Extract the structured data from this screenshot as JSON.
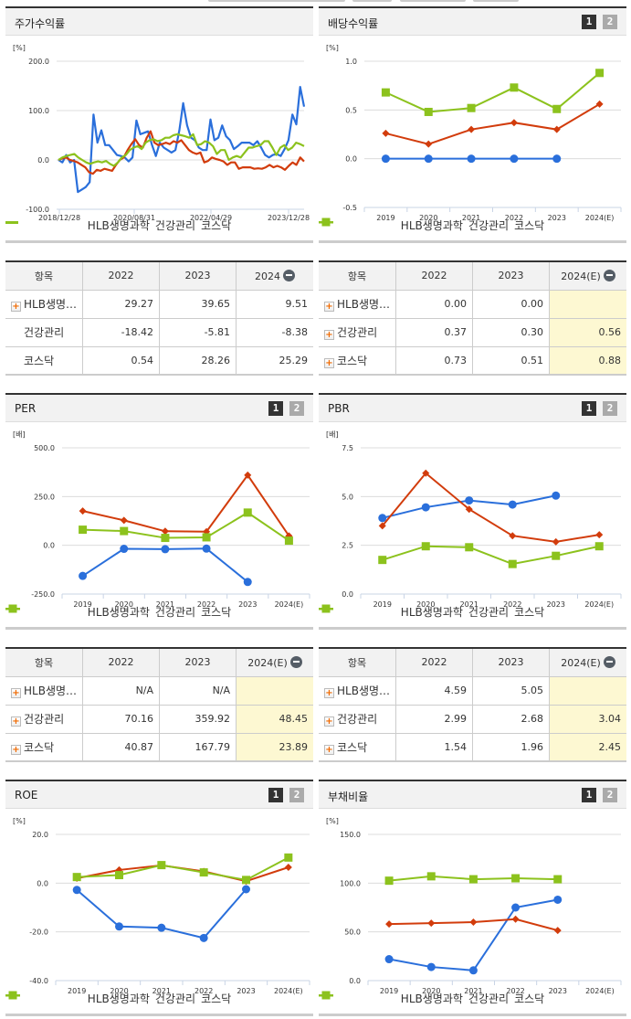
{
  "legend": {
    "series": [
      {
        "name": "HLB생명과학",
        "color": "#2a6fdb"
      },
      {
        "name": "건강관리",
        "color": "#d23c0c"
      },
      {
        "name": "코스닥",
        "color": "#8cc21d"
      }
    ]
  },
  "pager": {
    "page1": "1",
    "page2": "2"
  },
  "panels": {
    "stock_return": {
      "title": "주가수익률",
      "unit": "[%]",
      "y_ticks": [
        "200.0",
        "100.0",
        "0.0",
        "-100.0"
      ],
      "x_ticks": [
        "2018/12/28",
        "2020/08/31",
        "2022/04/29",
        "2023/12/28"
      ],
      "table": {
        "headers": [
          "항목",
          "2022",
          "2023",
          "2024"
        ],
        "rows": [
          {
            "name": "HLB생명…",
            "v": [
              "29.27",
              "39.65",
              "9.51"
            ],
            "expandable": true
          },
          {
            "name": "건강관리",
            "v": [
              "-18.42",
              "-5.81",
              "-8.38"
            ],
            "expandable": false
          },
          {
            "name": "코스닥",
            "v": [
              "0.54",
              "28.26",
              "25.29"
            ],
            "expandable": false
          }
        ]
      }
    },
    "dividend": {
      "title": "배당수익률",
      "unit": "[%]",
      "y_ticks": [
        "1.0",
        "0.5",
        "0.0",
        "-0.5"
      ],
      "x_ticks": [
        "2019",
        "2020",
        "2021",
        "2022",
        "2023",
        "2024(E)"
      ],
      "table": {
        "headers": [
          "항목",
          "2022",
          "2023",
          "2024(E)"
        ],
        "rows": [
          {
            "name": "HLB생명…",
            "v": [
              "0.00",
              "0.00",
              ""
            ]
          },
          {
            "name": "건강관리",
            "v": [
              "0.37",
              "0.30",
              "0.56"
            ]
          },
          {
            "name": "코스닥",
            "v": [
              "0.73",
              "0.51",
              "0.88"
            ]
          }
        ]
      }
    },
    "per": {
      "title": "PER",
      "unit": "[배]",
      "y_ticks": [
        "500.0",
        "250.0",
        "0.0",
        "-250.0"
      ],
      "x_ticks": [
        "2019",
        "2020",
        "2021",
        "2022",
        "2023",
        "2024(E)"
      ],
      "table": {
        "headers": [
          "항목",
          "2022",
          "2023",
          "2024(E)"
        ],
        "rows": [
          {
            "name": "HLB생명…",
            "v": [
              "N/A",
              "N/A",
              ""
            ]
          },
          {
            "name": "건강관리",
            "v": [
              "70.16",
              "359.92",
              "48.45"
            ]
          },
          {
            "name": "코스닥",
            "v": [
              "40.87",
              "167.79",
              "23.89"
            ]
          }
        ]
      }
    },
    "pbr": {
      "title": "PBR",
      "unit": "[배]",
      "y_ticks": [
        "7.5",
        "5.0",
        "2.5",
        "0.0"
      ],
      "x_ticks": [
        "2019",
        "2020",
        "2021",
        "2022",
        "2023",
        "2024(E)"
      ],
      "table": {
        "headers": [
          "항목",
          "2022",
          "2023",
          "2024(E)"
        ],
        "rows": [
          {
            "name": "HLB생명…",
            "v": [
              "4.59",
              "5.05",
              ""
            ]
          },
          {
            "name": "건강관리",
            "v": [
              "2.99",
              "2.68",
              "3.04"
            ]
          },
          {
            "name": "코스닥",
            "v": [
              "1.54",
              "1.96",
              "2.45"
            ]
          }
        ]
      }
    },
    "roe": {
      "title": "ROE",
      "unit": "[%]",
      "y_ticks": [
        "20.0",
        "0.0",
        "-20.0",
        "-40.0"
      ],
      "x_ticks": [
        "2019",
        "2020",
        "2021",
        "2022",
        "2023",
        "2024(E)"
      ]
    },
    "debt": {
      "title": "부채비율",
      "unit": "[%]",
      "y_ticks": [
        "150.0",
        "100.0",
        "50.0",
        "0.0"
      ],
      "x_ticks": [
        "2019",
        "2020",
        "2021",
        "2022",
        "2023",
        "2024(E)"
      ]
    }
  },
  "chart_data": [
    {
      "type": "line",
      "title": "주가수익률",
      "ylabel": "[%]",
      "ylim": [
        -100,
        200
      ],
      "x": [
        "2018/12/28",
        "2020/08/31",
        "2022/04/29",
        "2023/12/28"
      ],
      "series": [
        {
          "name": "HLB생명과학",
          "values": [
            0,
            -5,
            10,
            -5,
            0,
            -65,
            -60,
            -55,
            -45,
            92,
            35,
            60,
            30,
            30,
            20,
            10,
            8,
            5,
            -3,
            5,
            80,
            52,
            55,
            58,
            30,
            8,
            35,
            25,
            20,
            15,
            20,
            60,
            115,
            70,
            45,
            40,
            25,
            20,
            20,
            82,
            40,
            45,
            70,
            48,
            40,
            22,
            28,
            35,
            35,
            35,
            30,
            38,
            25,
            10,
            5,
            10,
            12,
            8,
            22,
            40,
            92,
            72,
            148,
            108
          ]
        },
        {
          "name": "건강관리",
          "values": [
            0,
            3,
            5,
            0,
            -2,
            -5,
            -10,
            -15,
            -25,
            -28,
            -20,
            -22,
            -18,
            -20,
            -22,
            -10,
            0,
            5,
            20,
            32,
            42,
            30,
            25,
            45,
            58,
            35,
            30,
            32,
            35,
            32,
            38,
            35,
            40,
            30,
            20,
            15,
            12,
            15,
            -5,
            -2,
            5,
            2,
            0,
            -3,
            -10,
            -5,
            -5,
            -18,
            -15,
            -15,
            -15,
            -18,
            -17,
            -18,
            -15,
            -10,
            -15,
            -12,
            -15,
            -20,
            -12,
            -5,
            -10,
            5,
            -3
          ]
        },
        {
          "name": "코스닥",
          "values": [
            0,
            5,
            8,
            10,
            12,
            5,
            0,
            -5,
            -8,
            -5,
            -3,
            -5,
            -2,
            -8,
            -12,
            -5,
            5,
            10,
            20,
            25,
            28,
            22,
            35,
            40,
            42,
            38,
            40,
            45,
            45,
            50,
            52,
            50,
            48,
            45,
            52,
            30,
            32,
            38,
            35,
            28,
            12,
            20,
            20,
            0,
            5,
            8,
            5,
            15,
            25,
            25,
            28,
            30,
            38,
            38,
            25,
            10,
            25,
            30,
            20,
            25,
            35,
            32,
            28
          ]
        }
      ]
    },
    {
      "type": "line",
      "title": "배당수익률",
      "ylabel": "[%]",
      "ylim": [
        -0.5,
        1.0
      ],
      "categories": [
        "2019",
        "2020",
        "2021",
        "2022",
        "2023",
        "2024(E)"
      ],
      "series": [
        {
          "name": "HLB생명과학",
          "values": [
            0.0,
            0.0,
            0.0,
            0.0,
            0.0,
            null
          ]
        },
        {
          "name": "건강관리",
          "values": [
            0.26,
            0.15,
            0.3,
            0.37,
            0.3,
            0.56
          ]
        },
        {
          "name": "코스닥",
          "values": [
            0.68,
            0.48,
            0.52,
            0.73,
            0.51,
            0.88
          ]
        }
      ]
    },
    {
      "type": "line",
      "title": "PER",
      "ylabel": "[배]",
      "ylim": [
        -250,
        500
      ],
      "categories": [
        "2019",
        "2020",
        "2021",
        "2022",
        "2023",
        "2024(E)"
      ],
      "series": [
        {
          "name": "HLB생명과학",
          "values": [
            -157,
            -18,
            -20,
            -17,
            -188,
            null
          ]
        },
        {
          "name": "건강관리",
          "values": [
            176,
            128,
            72,
            70.16,
            359.92,
            48.45
          ]
        },
        {
          "name": "코스닥",
          "values": [
            80,
            73,
            38,
            40.87,
            167.79,
            23.89
          ]
        }
      ]
    },
    {
      "type": "line",
      "title": "PBR",
      "ylabel": "[배]",
      "ylim": [
        0,
        7.5
      ],
      "categories": [
        "2019",
        "2020",
        "2021",
        "2022",
        "2023",
        "2024(E)"
      ],
      "series": [
        {
          "name": "HLB생명과학",
          "values": [
            3.9,
            4.45,
            4.8,
            4.59,
            5.05,
            null
          ]
        },
        {
          "name": "건강관리",
          "values": [
            3.5,
            6.2,
            4.35,
            2.99,
            2.68,
            3.04
          ]
        },
        {
          "name": "코스닥",
          "values": [
            1.75,
            2.45,
            2.4,
            1.54,
            1.96,
            2.45
          ]
        }
      ]
    },
    {
      "type": "line",
      "title": "ROE",
      "ylabel": "[%]",
      "ylim": [
        -40,
        20
      ],
      "categories": [
        "2019",
        "2020",
        "2021",
        "2022",
        "2023",
        "2024(E)"
      ],
      "series": [
        {
          "name": "HLB생명과학",
          "values": [
            -2.8,
            -17.8,
            -18.3,
            -22.5,
            -2.5,
            null
          ]
        },
        {
          "name": "건강관리",
          "values": [
            2.0,
            5.4,
            7.3,
            4.8,
            0.8,
            6.5
          ]
        },
        {
          "name": "코스닥",
          "values": [
            2.5,
            3.3,
            7.4,
            4.4,
            1.3,
            10.5
          ]
        }
      ]
    },
    {
      "type": "line",
      "title": "부채비율",
      "ylabel": "[%]",
      "ylim": [
        0,
        150
      ],
      "categories": [
        "2019",
        "2020",
        "2021",
        "2022",
        "2023",
        "2024(E)"
      ],
      "series": [
        {
          "name": "HLB생명과학",
          "values": [
            22,
            14,
            10.5,
            75,
            83,
            null
          ]
        },
        {
          "name": "건강관리",
          "values": [
            58,
            59,
            60,
            63,
            51.5,
            null
          ]
        },
        {
          "name": "코스닥",
          "values": [
            102.5,
            107,
            104,
            105,
            104,
            null
          ]
        }
      ]
    }
  ]
}
